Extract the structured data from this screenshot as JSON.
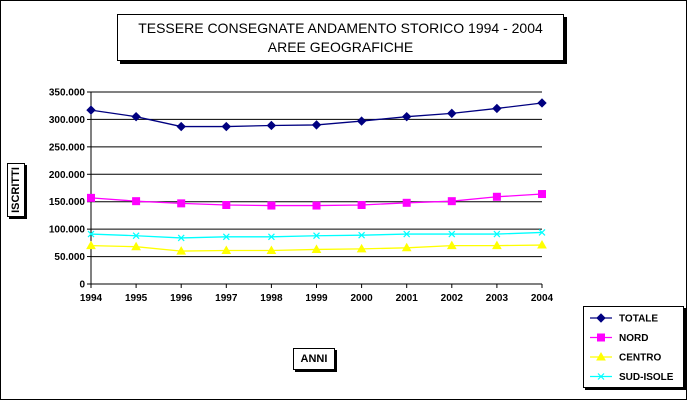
{
  "chart_data": {
    "type": "line",
    "title_line1": "TESSERE CONSEGNATE ANDAMENTO STORICO 1994 - 2004",
    "title_line2": "AREE GEOGRAFICHE",
    "xlabel": "ANNI",
    "ylabel": "ISCRITTI",
    "ylim": [
      0,
      350000
    ],
    "yticks": [
      0,
      50000,
      100000,
      150000,
      200000,
      250000,
      300000,
      350000
    ],
    "ytick_labels": [
      "0",
      "50.000",
      "100.000",
      "150.000",
      "200.000",
      "250.000",
      "300.000",
      "350.000"
    ],
    "categories": [
      "1994",
      "1995",
      "1996",
      "1997",
      "1998",
      "1999",
      "2000",
      "2001",
      "2002",
      "2003",
      "2004"
    ],
    "grid": "horizontal",
    "legend_position": "bottom-right",
    "series": [
      {
        "name": "TOTALE",
        "color": "#000080",
        "marker": "diamond",
        "values": [
          317000,
          305000,
          287000,
          287000,
          289000,
          290000,
          297000,
          305000,
          311000,
          320000,
          330000
        ]
      },
      {
        "name": "NORD",
        "color": "#ff00ff",
        "marker": "square",
        "values": [
          157000,
          151000,
          147000,
          144000,
          143000,
          143000,
          144000,
          148000,
          151000,
          159000,
          164000
        ]
      },
      {
        "name": "CENTRO",
        "color": "#ffff00",
        "marker": "triangle",
        "values": [
          70000,
          68000,
          60000,
          61000,
          61000,
          63000,
          64000,
          66000,
          70000,
          70000,
          71000
        ]
      },
      {
        "name": "SUD-ISOLE",
        "color": "#00ffff",
        "marker": "x",
        "values": [
          91000,
          88000,
          84000,
          86000,
          86000,
          88000,
          89000,
          91000,
          91000,
          91000,
          94000
        ]
      }
    ]
  }
}
